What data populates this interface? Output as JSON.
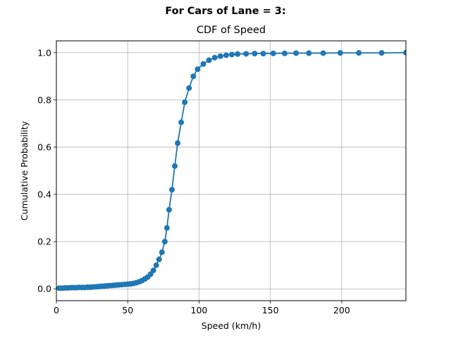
{
  "figure": {
    "suptitle": "For Cars of Lane = 3:"
  },
  "chart_data": {
    "type": "line",
    "title": "CDF of Speed",
    "xlabel": "Speed (km/h)",
    "ylabel": "Cumulative Probability",
    "xlim": [
      0,
      245
    ],
    "ylim": [
      -0.05,
      1.05
    ],
    "xticks": [
      0,
      50,
      100,
      150,
      200
    ],
    "yticks": [
      0.0,
      0.2,
      0.4,
      0.6,
      0.8,
      1.0
    ],
    "xtick_labels": [
      "0",
      "50",
      "100",
      "150",
      "200"
    ],
    "ytick_labels": [
      "0.0",
      "0.2",
      "0.4",
      "0.6",
      "0.8",
      "1.0"
    ],
    "grid": true,
    "color": "#1f77b4",
    "marker": "circle",
    "series": [
      {
        "x": [
          2,
          4,
          6,
          8,
          10,
          12,
          14,
          16,
          18,
          20,
          22,
          24,
          26,
          28,
          30,
          32,
          34,
          36,
          38,
          40,
          42,
          44,
          46,
          48,
          50,
          52,
          54,
          56,
          58,
          60,
          62,
          64,
          66,
          68,
          70,
          72,
          74,
          76,
          77.5,
          79,
          81,
          83,
          85,
          87.5,
          90,
          93,
          96,
          99,
          103,
          107,
          111,
          115,
          119,
          123,
          127,
          133,
          139,
          145,
          152,
          160,
          168,
          177,
          187,
          199,
          212,
          228,
          245
        ],
        "y": [
          0.003,
          0.003,
          0.004,
          0.004,
          0.005,
          0.005,
          0.005,
          0.006,
          0.006,
          0.006,
          0.007,
          0.007,
          0.008,
          0.009,
          0.01,
          0.011,
          0.012,
          0.013,
          0.014,
          0.015,
          0.016,
          0.017,
          0.018,
          0.019,
          0.02,
          0.021,
          0.023,
          0.026,
          0.03,
          0.035,
          0.042,
          0.05,
          0.062,
          0.078,
          0.1,
          0.125,
          0.155,
          0.2,
          0.258,
          0.335,
          0.42,
          0.52,
          0.617,
          0.705,
          0.79,
          0.85,
          0.9,
          0.93,
          0.952,
          0.968,
          0.979,
          0.985,
          0.989,
          0.992,
          0.994,
          0.995,
          0.996,
          0.996,
          0.997,
          0.997,
          0.998,
          0.998,
          0.998,
          0.999,
          0.999,
          0.999,
          1.0
        ]
      }
    ]
  }
}
